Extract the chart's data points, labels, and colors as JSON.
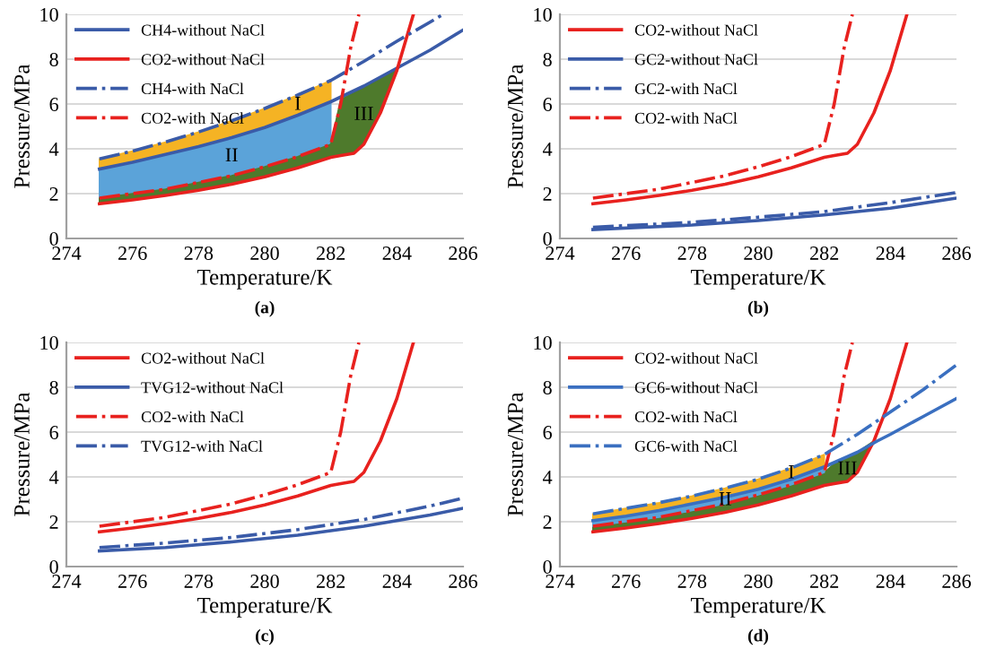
{
  "chart_data": [
    {
      "type": "line",
      "title": "(a)",
      "xlabel": "Temperature/K",
      "ylabel": "Pressure/MPa",
      "xlim": [
        274,
        286
      ],
      "xticks": [
        274,
        276,
        278,
        280,
        282,
        284,
        286
      ],
      "ylim": [
        0,
        10
      ],
      "yticks": [
        0,
        2,
        4,
        6,
        8,
        10
      ],
      "grid": "y",
      "legend": "top left",
      "annotations": [
        "I",
        "II",
        "III"
      ],
      "series": [
        {
          "name": "CH4-without NaCl",
          "color": "#3a5ba8",
          "line_style": "solid",
          "x": [
            275,
            276,
            277,
            278,
            279,
            280,
            281,
            282,
            283,
            284,
            285,
            286
          ],
          "values": [
            3.1,
            3.4,
            3.75,
            4.1,
            4.5,
            4.95,
            5.5,
            6.1,
            6.8,
            7.6,
            8.4,
            9.3
          ],
          "lower": [
            1.8,
            2.0,
            2.2,
            2.5,
            2.8,
            3.2,
            3.65,
            4.2,
            null,
            null,
            null,
            null
          ],
          "upper": [
            3.1,
            3.4,
            3.75,
            4.1,
            4.5,
            4.95,
            5.5,
            6.1,
            null,
            null,
            null,
            null
          ]
        },
        {
          "name": "CO2-without NaCl",
          "color": "#e8211e",
          "line_style": "solid",
          "x": [
            275,
            276,
            277,
            278,
            279,
            280,
            281,
            282,
            282.3,
            282.7,
            283,
            283.5,
            284,
            284.3,
            284.5
          ],
          "values": [
            1.55,
            1.72,
            1.92,
            2.15,
            2.42,
            2.75,
            3.15,
            3.62,
            3.7,
            3.8,
            4.2,
            5.6,
            7.5,
            9.0,
            10
          ],
          "lower": [
            1.55,
            1.72,
            1.92,
            2.15,
            2.42,
            2.75,
            3.15,
            3.62,
            3.7,
            3.8,
            4.2,
            5.6,
            7.5,
            null,
            null
          ],
          "upper": [
            1.8,
            2.0,
            2.2,
            2.5,
            2.8,
            3.2,
            3.65,
            4.2,
            6.2,
            6.5,
            6.8,
            7.2,
            7.6,
            null,
            null
          ]
        },
        {
          "name": "CH4-with NaCl",
          "color": "#3a5ba8",
          "line_style": "dashdot",
          "x": [
            275,
            276,
            277,
            278,
            279,
            280,
            281,
            282,
            283,
            284,
            285,
            285.4
          ],
          "values": [
            3.55,
            3.9,
            4.3,
            4.75,
            5.25,
            5.8,
            6.4,
            7.05,
            7.9,
            8.8,
            9.65,
            10
          ],
          "lower": [
            3.1,
            3.4,
            3.75,
            4.1,
            4.5,
            4.95,
            5.5,
            6.1,
            null,
            null,
            null,
            null
          ],
          "upper": [
            3.55,
            3.9,
            4.3,
            4.75,
            5.25,
            5.8,
            6.4,
            7.05,
            null,
            null,
            null,
            null
          ]
        },
        {
          "name": "CO2-with NaCl",
          "color": "#e8211e",
          "line_style": "dashdot",
          "x": [
            275,
            276,
            277,
            278,
            279,
            280,
            281,
            282,
            282.3,
            282.6,
            282.85
          ],
          "values": [
            1.8,
            2.0,
            2.2,
            2.5,
            2.8,
            3.2,
            3.65,
            4.2,
            6.0,
            8.5,
            10
          ]
        }
      ]
    },
    {
      "type": "line",
      "title": "(b)",
      "xlabel": "Temperature/K",
      "ylabel": "Pressure/MPa",
      "xlim": [
        274,
        286
      ],
      "xticks": [
        274,
        276,
        278,
        280,
        282,
        284,
        286
      ],
      "ylim": [
        0,
        10
      ],
      "yticks": [
        0,
        2,
        4,
        6,
        8,
        10
      ],
      "grid": "y",
      "legend": "top left",
      "series": [
        {
          "name": "CO2-without NaCl",
          "color": "#e8211e",
          "line_style": "solid",
          "x": [
            275,
            276,
            277,
            278,
            279,
            280,
            281,
            282,
            282.3,
            282.7,
            283,
            283.5,
            284,
            284.3,
            284.5
          ],
          "values": [
            1.55,
            1.72,
            1.92,
            2.15,
            2.42,
            2.75,
            3.15,
            3.62,
            3.7,
            3.8,
            4.2,
            5.6,
            7.5,
            9.0,
            10
          ]
        },
        {
          "name": "GC2-without NaCl",
          "color": "#3a5ba8",
          "line_style": "solid",
          "x": [
            275,
            278,
            280,
            282,
            284,
            286
          ],
          "values": [
            0.4,
            0.6,
            0.8,
            1.05,
            1.35,
            1.8
          ]
        },
        {
          "name": "GC2-with NaCl",
          "color": "#3a5ba8",
          "line_style": "dashdot",
          "x": [
            275,
            278,
            280,
            282,
            284,
            286
          ],
          "values": [
            0.5,
            0.72,
            0.95,
            1.2,
            1.6,
            2.05
          ]
        },
        {
          "name": "CO2-with NaCl",
          "color": "#e8211e",
          "line_style": "dashdot",
          "x": [
            275,
            276,
            277,
            278,
            279,
            280,
            281,
            282,
            282.3,
            282.6,
            282.85
          ],
          "values": [
            1.8,
            2.0,
            2.2,
            2.5,
            2.8,
            3.2,
            3.65,
            4.2,
            6.0,
            8.5,
            10
          ]
        }
      ]
    },
    {
      "type": "line",
      "title": "(c)",
      "xlabel": "Temperature/K",
      "ylabel": "Pressure/MPa",
      "xlim": [
        274,
        286
      ],
      "xticks": [
        274,
        276,
        278,
        280,
        282,
        284,
        286
      ],
      "ylim": [
        0,
        10
      ],
      "yticks": [
        0,
        2,
        4,
        6,
        8,
        10
      ],
      "grid": "y",
      "legend": "top left",
      "series": [
        {
          "name": "CO2-without NaCl",
          "color": "#e8211e",
          "line_style": "solid",
          "x": [
            275,
            276,
            277,
            278,
            279,
            280,
            281,
            282,
            282.3,
            282.7,
            283,
            283.5,
            284,
            284.3,
            284.5
          ],
          "values": [
            1.55,
            1.72,
            1.92,
            2.15,
            2.42,
            2.75,
            3.15,
            3.62,
            3.7,
            3.8,
            4.2,
            5.6,
            7.5,
            9.0,
            10
          ]
        },
        {
          "name": "TVG12-without NaCl",
          "color": "#3a5ba8",
          "line_style": "solid",
          "x": [
            275,
            277,
            279,
            281,
            283,
            285,
            286
          ],
          "values": [
            0.7,
            0.85,
            1.1,
            1.4,
            1.8,
            2.3,
            2.6
          ]
        },
        {
          "name": "CO2-with NaCl",
          "color": "#e8211e",
          "line_style": "dashdot",
          "x": [
            275,
            276,
            277,
            278,
            279,
            280,
            281,
            282,
            282.3,
            282.6,
            282.85
          ],
          "values": [
            1.8,
            2.0,
            2.2,
            2.5,
            2.8,
            3.2,
            3.65,
            4.2,
            6.0,
            8.5,
            10
          ]
        },
        {
          "name": "TVG12-with NaCl",
          "color": "#3a5ba8",
          "line_style": "dashdot",
          "x": [
            275,
            277,
            279,
            281,
            283,
            285,
            286
          ],
          "values": [
            0.85,
            1.05,
            1.3,
            1.65,
            2.1,
            2.7,
            3.05
          ]
        }
      ]
    },
    {
      "type": "line",
      "title": "(d)",
      "xlabel": "Temperature/K",
      "ylabel": "Pressure/MPa",
      "xlim": [
        274,
        286
      ],
      "xticks": [
        274,
        276,
        278,
        280,
        282,
        284,
        286
      ],
      "ylim": [
        0,
        10
      ],
      "yticks": [
        0,
        2,
        4,
        6,
        8,
        10
      ],
      "grid": "y",
      "legend": "top left",
      "annotations": [
        "I",
        "II",
        "III"
      ],
      "series": [
        {
          "name": "CO2-without NaCl",
          "color": "#e8211e",
          "line_style": "solid",
          "x": [
            275,
            276,
            277,
            278,
            279,
            280,
            281,
            282,
            282.3,
            282.7,
            283,
            283.5,
            284,
            284.3,
            284.5
          ],
          "values": [
            1.55,
            1.72,
            1.92,
            2.15,
            2.42,
            2.75,
            3.15,
            3.62,
            3.7,
            3.8,
            4.2,
            5.6,
            7.5,
            9.0,
            10
          ],
          "lower": [
            1.55,
            1.72,
            1.92,
            2.15,
            2.42,
            2.75,
            3.15,
            3.62,
            3.7,
            3.8,
            4.2,
            5.6,
            null,
            null,
            null
          ],
          "upper": [
            1.8,
            2.0,
            2.2,
            2.5,
            2.8,
            3.2,
            3.65,
            4.2,
            4.6,
            4.85,
            5.1,
            5.6,
            null,
            null,
            null
          ]
        },
        {
          "name": "GC6-without NaCl",
          "color": "#3a6fc0",
          "line_style": "solid",
          "x": [
            275,
            276,
            277,
            278,
            279,
            280,
            281,
            282,
            283,
            283.6,
            284,
            285,
            286
          ],
          "values": [
            2.05,
            2.25,
            2.5,
            2.8,
            3.1,
            3.45,
            3.9,
            4.45,
            5.1,
            5.6,
            5.9,
            6.7,
            7.5
          ],
          "lower": [
            1.8,
            2.0,
            2.2,
            2.5,
            2.8,
            3.2,
            3.65,
            4.2,
            null,
            null,
            null,
            null,
            null
          ],
          "upper": [
            2.05,
            2.25,
            2.5,
            2.8,
            3.1,
            3.45,
            3.9,
            4.45,
            null,
            null,
            null,
            null,
            null
          ]
        },
        {
          "name": "CO2-with NaCl",
          "color": "#e8211e",
          "line_style": "dashdot",
          "x": [
            275,
            276,
            277,
            278,
            279,
            280,
            281,
            282,
            282.3,
            282.6,
            282.85
          ],
          "values": [
            1.8,
            2.0,
            2.2,
            2.5,
            2.8,
            3.2,
            3.65,
            4.2,
            6.0,
            8.5,
            10
          ]
        },
        {
          "name": "GC6-with NaCl",
          "color": "#3a6fc0",
          "line_style": "dashdot",
          "x": [
            275,
            276,
            277,
            278,
            279,
            280,
            281,
            282,
            283,
            284,
            285,
            286
          ],
          "values": [
            2.35,
            2.6,
            2.85,
            3.15,
            3.5,
            3.9,
            4.4,
            5.0,
            5.9,
            6.9,
            7.9,
            9.0
          ],
          "lower": [
            2.05,
            2.25,
            2.5,
            2.8,
            3.1,
            3.45,
            3.9,
            4.45,
            null,
            null,
            null,
            null
          ],
          "upper": [
            2.35,
            2.6,
            2.85,
            3.15,
            3.5,
            3.9,
            4.4,
            5.0,
            null,
            null,
            null,
            null
          ]
        }
      ]
    }
  ]
}
